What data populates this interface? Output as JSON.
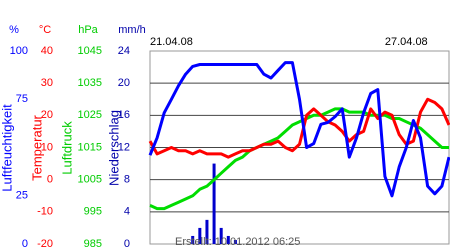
{
  "chart_data": {
    "type": "line",
    "categories": [
      "21.04.08",
      null,
      null,
      null,
      null,
      null,
      null,
      null,
      null,
      null,
      null,
      null,
      null,
      null,
      null,
      null,
      null,
      null,
      null,
      null,
      null,
      null,
      null,
      null,
      null,
      null,
      null,
      null,
      null,
      null,
      null,
      null,
      null,
      null,
      null,
      null,
      "27.04.08",
      null,
      null,
      null,
      null,
      null,
      null
    ],
    "footer": "Erstellt: 10.01.2012 06:25",
    "grid": true,
    "axes": [
      {
        "unit": "%",
        "label": "Luftfeuchtigkeit",
        "color": "#0000ff",
        "ylim": [
          0,
          100
        ],
        "yticks": [
          0,
          25,
          75,
          100
        ]
      },
      {
        "unit": "°C",
        "label": "Temperatur",
        "color": "#ff0000",
        "ylim": [
          -20,
          40
        ],
        "yticks": [
          -20,
          -10,
          0,
          10,
          20,
          30,
          40
        ]
      },
      {
        "unit": "hPa",
        "label": "Luftdruck",
        "color": "#00cc00",
        "ylim": [
          985,
          1045
        ],
        "yticks": [
          985,
          995,
          1005,
          1015,
          1025,
          1035,
          1045
        ]
      },
      {
        "unit": "mm/h",
        "label": "Niederschlag",
        "color": "#0000aa",
        "ylim": [
          0,
          24
        ],
        "yticks": [
          0,
          4,
          8,
          12,
          16,
          20,
          24
        ]
      }
    ],
    "series": [
      {
        "name": "Luftfeuchtigkeit",
        "axis": 0,
        "type": "line",
        "color": "#0000ff",
        "values": [
          46,
          55,
          68,
          75,
          82,
          88,
          92,
          93,
          93,
          93,
          93,
          93,
          93,
          93,
          93,
          93,
          88,
          86,
          90,
          94,
          94,
          75,
          50,
          52,
          62,
          63,
          66,
          70,
          45,
          55,
          68,
          78,
          80,
          35,
          25,
          40,
          50,
          64,
          55,
          30,
          26,
          30,
          45
        ]
      },
      {
        "name": "Temperatur",
        "axis": 1,
        "type": "line",
        "color": "#ff0000",
        "values": [
          12,
          8,
          9,
          10,
          9,
          9,
          8,
          9,
          8,
          8,
          8,
          7,
          8,
          9,
          9,
          10,
          11,
          11,
          12,
          10,
          9,
          11,
          20,
          22,
          20,
          18,
          17,
          15,
          12,
          14,
          15,
          22,
          19,
          21,
          20,
          14,
          11,
          12,
          21,
          25,
          24,
          22,
          17
        ]
      },
      {
        "name": "Luftdruck",
        "axis": 2,
        "type": "line",
        "color": "#00dd00",
        "values": [
          997,
          996,
          996,
          997,
          998,
          999,
          1000,
          1002,
          1003,
          1005,
          1007,
          1009,
          1011,
          1012,
          1014,
          1015,
          1016,
          1017,
          1018,
          1020,
          1022,
          1023,
          1024,
          1025,
          1025,
          1026,
          1027,
          1027,
          1026,
          1026,
          1026,
          1025,
          1025,
          1025,
          1024,
          1024,
          1023,
          1022,
          1021,
          1019,
          1017,
          1015,
          1015
        ]
      },
      {
        "name": "Niederschlag",
        "axis": 3,
        "type": "bar",
        "color": "#0000cc",
        "values": [
          0,
          0,
          0,
          0,
          0,
          0,
          1,
          2,
          3,
          10,
          2,
          1,
          0.5,
          0,
          0,
          0,
          0,
          0,
          0,
          0,
          0,
          0,
          0,
          0,
          0,
          0,
          0,
          0,
          0,
          0,
          0,
          0,
          0,
          0,
          0,
          0,
          0,
          0,
          0,
          0,
          0,
          0,
          0
        ]
      }
    ]
  }
}
